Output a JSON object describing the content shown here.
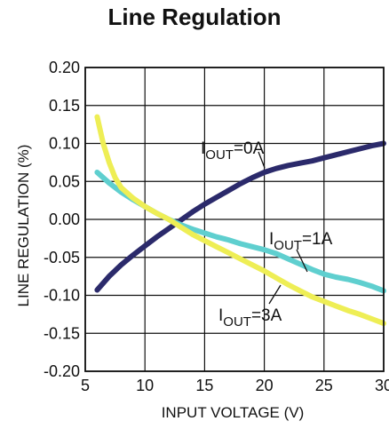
{
  "chart_data": {
    "type": "line",
    "title": "Line Regulation",
    "xlabel": "INPUT VOLTAGE (V)",
    "ylabel": "LINE REGULATION  (%)",
    "xlim": [
      5,
      30
    ],
    "ylim": [
      -0.2,
      0.2
    ],
    "grid": true,
    "x_ticks": [
      "5",
      "10",
      "15",
      "20",
      "25",
      "30"
    ],
    "y_ticks": [
      "0.20",
      "0.15",
      "0.10",
      "0.05",
      "0.00",
      "-0.05",
      "-0.10",
      "-0.15",
      "-0.20"
    ],
    "series": [
      {
        "name": "IOUT=0A",
        "label_main": "I",
        "label_sub": "OUT",
        "label_rest": "=0A",
        "color": "#2b2a6b",
        "x": [
          6,
          7,
          8,
          9,
          10,
          11,
          12,
          13,
          14,
          15,
          16,
          17,
          18,
          19,
          20,
          21,
          22,
          23,
          24,
          25,
          26,
          27,
          28,
          29,
          30
        ],
        "y": [
          -0.093,
          -0.075,
          -0.06,
          -0.047,
          -0.035,
          -0.023,
          -0.012,
          -0.001,
          0.01,
          0.02,
          0.029,
          0.038,
          0.047,
          0.055,
          0.062,
          0.067,
          0.071,
          0.074,
          0.077,
          0.081,
          0.085,
          0.089,
          0.093,
          0.097,
          0.1
        ]
      },
      {
        "name": "IOUT=1A",
        "label_main": "I",
        "label_sub": "OUT",
        "label_rest": "=1A",
        "color": "#5fcfcf",
        "x": [
          6,
          7,
          8,
          9,
          10,
          11,
          12,
          13,
          14,
          15,
          16,
          17,
          18,
          19,
          20,
          21,
          22,
          23,
          24,
          25,
          26,
          27,
          28,
          29,
          30
        ],
        "y": [
          0.062,
          0.048,
          0.036,
          0.026,
          0.017,
          0.008,
          0.0,
          -0.007,
          -0.013,
          -0.018,
          -0.023,
          -0.027,
          -0.032,
          -0.036,
          -0.04,
          -0.045,
          -0.052,
          -0.059,
          -0.066,
          -0.072,
          -0.076,
          -0.079,
          -0.083,
          -0.088,
          -0.094
        ]
      },
      {
        "name": "IOUT=3A",
        "label_main": "I",
        "label_sub": "OUT",
        "label_rest": "=3A",
        "color": "#eeee55",
        "x": [
          6,
          6.5,
          7,
          7.5,
          8,
          9,
          10,
          11,
          12,
          13,
          14,
          15,
          16,
          17,
          18,
          19,
          20,
          21,
          22,
          23,
          24,
          25,
          26,
          27,
          28,
          29,
          30
        ],
        "y": [
          0.135,
          0.1,
          0.075,
          0.055,
          0.042,
          0.028,
          0.017,
          0.008,
          0.0,
          -0.01,
          -0.02,
          -0.028,
          -0.036,
          -0.044,
          -0.052,
          -0.06,
          -0.068,
          -0.077,
          -0.086,
          -0.094,
          -0.102,
          -0.108,
          -0.114,
          -0.12,
          -0.125,
          -0.131,
          -0.137
        ]
      }
    ]
  }
}
